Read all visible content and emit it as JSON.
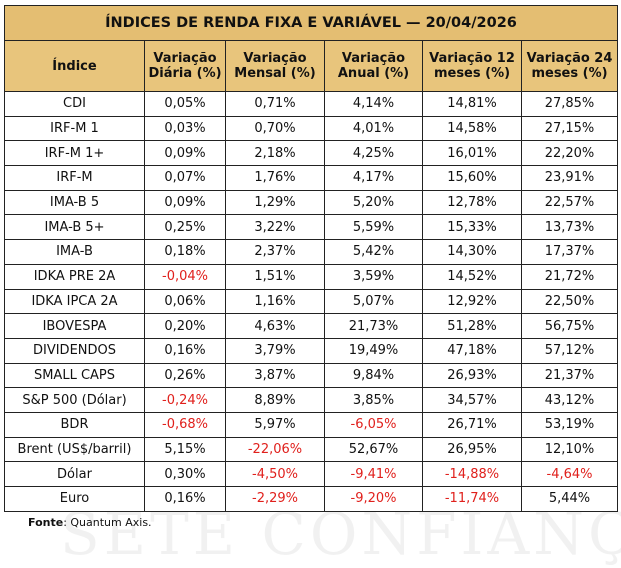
{
  "title": "ÍNDICES DE RENDA FIXA E VARIÁVEL — 20/04/2026",
  "table": {
    "headers": [
      "Índice",
      "Variação Diária (%)",
      "Variação Mensal (%)",
      "Variação Anual (%)",
      "Variação 12 meses (%)",
      "Variação 24 meses (%)"
    ],
    "rows": [
      [
        "CDI",
        "0,05%",
        "0,71%",
        "4,14%",
        "14,81%",
        "27,85%"
      ],
      [
        "IRF-M 1",
        "0,03%",
        "0,70%",
        "4,01%",
        "14,58%",
        "27,15%"
      ],
      [
        "IRF-M 1+",
        "0,09%",
        "2,18%",
        "4,25%",
        "16,01%",
        "22,20%"
      ],
      [
        "IRF-M",
        "0,07%",
        "1,76%",
        "4,17%",
        "15,60%",
        "23,91%"
      ],
      [
        "IMA-B 5",
        "0,09%",
        "1,29%",
        "5,20%",
        "12,78%",
        "22,57%"
      ],
      [
        "IMA-B 5+",
        "0,25%",
        "3,22%",
        "5,59%",
        "15,33%",
        "13,73%"
      ],
      [
        "IMA-B",
        "0,18%",
        "2,37%",
        "5,42%",
        "14,30%",
        "17,37%"
      ],
      [
        "IDKA PRE 2A",
        "-0,04%",
        "1,51%",
        "3,59%",
        "14,52%",
        "21,72%"
      ],
      [
        "IDKA IPCA 2A",
        "0,06%",
        "1,16%",
        "5,07%",
        "12,92%",
        "22,50%"
      ],
      [
        "IBOVESPA",
        "0,20%",
        "4,63%",
        "21,73%",
        "51,28%",
        "56,75%"
      ],
      [
        "DIVIDENDOS",
        "0,16%",
        "3,79%",
        "19,49%",
        "47,18%",
        "57,12%"
      ],
      [
        "SMALL CAPS",
        "0,26%",
        "3,87%",
        "9,84%",
        "26,93%",
        "21,37%"
      ],
      [
        "S&P 500 (Dólar)",
        "-0,24%",
        "8,89%",
        "3,85%",
        "34,57%",
        "43,12%"
      ],
      [
        "BDR",
        "-0,68%",
        "5,97%",
        "-6,05%",
        "26,71%",
        "53,19%"
      ],
      [
        "Brent (US$/barril)",
        "5,15%",
        "-22,06%",
        "52,67%",
        "26,95%",
        "12,10%"
      ],
      [
        "Dólar",
        "0,30%",
        "-4,50%",
        "-9,41%",
        "-14,88%",
        "-4,64%"
      ],
      [
        "Euro",
        "0,16%",
        "-2,29%",
        "-9,20%",
        "-11,74%",
        "5,44%"
      ]
    ]
  },
  "source": {
    "label": "Fonte",
    "text": ": Quantum Axis."
  },
  "watermark": "SETE CONFIANÇA"
}
